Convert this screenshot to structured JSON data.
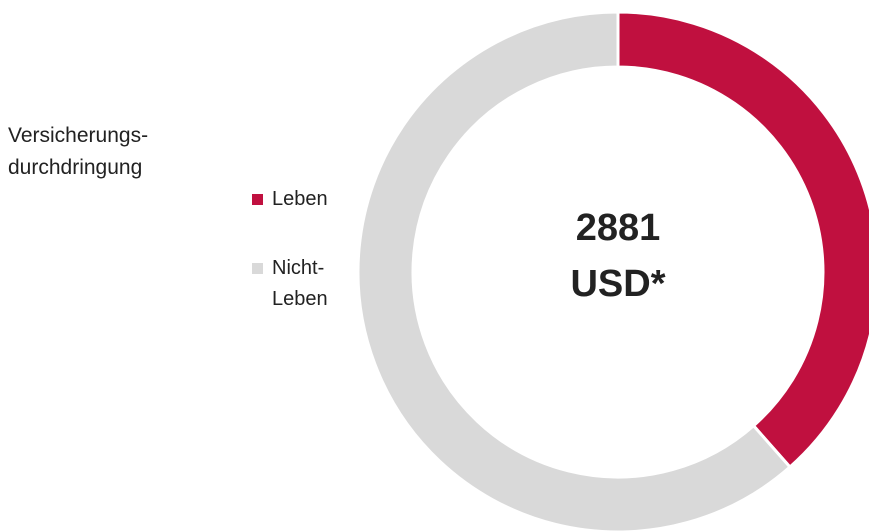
{
  "chart_data": {
    "type": "donut",
    "title": "Versicherungs-durchdringung",
    "categories": [
      "Leben",
      "Nicht-Leben"
    ],
    "values": [
      38.5,
      61.5
    ],
    "colors": [
      "#c0103f",
      "#d9d9d9"
    ],
    "center_label": [
      "2881",
      "USD*"
    ]
  }
}
